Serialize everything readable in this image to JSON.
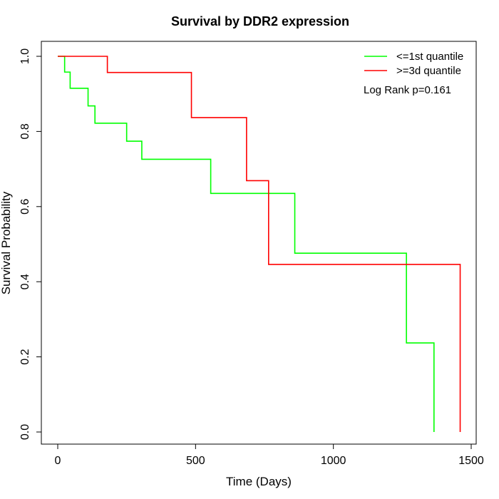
{
  "chart_data": {
    "type": "line",
    "title": "Survival by DDR2 expression",
    "xlabel": "Time (Days)",
    "ylabel": "Survival Probability",
    "xlim": [
      0,
      1500
    ],
    "ylim": [
      0,
      1
    ],
    "x_ticks": [
      0,
      500,
      1000,
      1500
    ],
    "y_ticks": [
      0.0,
      0.2,
      0.4,
      0.6,
      0.8,
      1.0
    ],
    "x_tick_labels": [
      "0",
      "500",
      "1000",
      "1500"
    ],
    "y_tick_labels": [
      "0.0",
      "0.2",
      "0.4",
      "0.6",
      "0.8",
      "1.0"
    ],
    "grid": false,
    "legend_position": "top-right",
    "annotation": "Log Rank p=0.161",
    "series": [
      {
        "name": "<=1st quantile",
        "color": "#00ff00",
        "step": "post",
        "x": [
          0,
          25,
          45,
          110,
          135,
          250,
          305,
          555,
          860,
          1265,
          1365,
          1365
        ],
        "y": [
          1.0,
          0.958,
          0.915,
          0.868,
          0.822,
          0.774,
          0.726,
          0.635,
          0.476,
          0.237,
          0.237,
          0.0
        ]
      },
      {
        "name": ">=3d quantile",
        "color": "#ff0000",
        "step": "post",
        "x": [
          0,
          180,
          485,
          685,
          765,
          1460,
          1460
        ],
        "y": [
          1.0,
          0.957,
          0.837,
          0.669,
          0.446,
          0.446,
          0.0
        ]
      }
    ]
  }
}
